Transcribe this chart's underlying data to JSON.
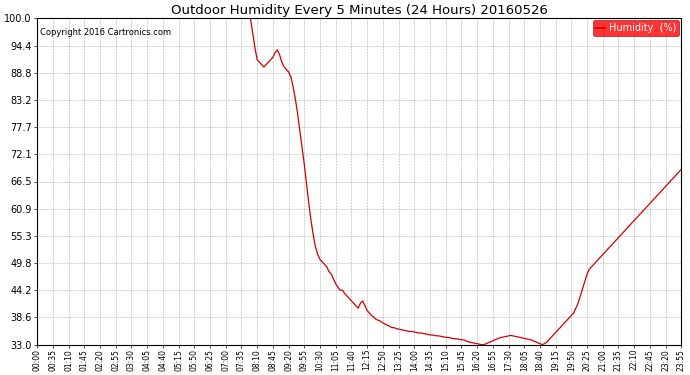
{
  "title": "Outdoor Humidity Every 5 Minutes (24 Hours) 20160526",
  "copyright_text": "Copyright 2016 Cartronics.com",
  "legend_label": "Humidity  (%)",
  "legend_bg": "#FF0000",
  "legend_fg": "#FFFFFF",
  "line_color": "#CC0000",
  "bg_color": "#FFFFFF",
  "plot_bg_color": "#FFFFFF",
  "grid_color": "#999999",
  "ylim": [
    33.0,
    100.0
  ],
  "yticks": [
    33.0,
    38.6,
    44.2,
    49.8,
    55.3,
    60.9,
    66.5,
    72.1,
    77.7,
    83.2,
    88.8,
    94.4,
    100.0
  ],
  "x_label_every_n": 7,
  "humidity_values": [
    100.0,
    100.0,
    100.0,
    100.0,
    100.0,
    100.0,
    100.0,
    100.0,
    100.0,
    100.0,
    100.0,
    100.0,
    100.0,
    100.0,
    100.0,
    100.0,
    100.0,
    100.0,
    100.0,
    100.0,
    100.0,
    100.0,
    100.0,
    100.0,
    100.0,
    100.0,
    100.0,
    100.0,
    100.0,
    100.0,
    100.0,
    100.0,
    100.0,
    100.0,
    100.0,
    100.0,
    100.0,
    100.0,
    100.0,
    100.0,
    100.0,
    100.0,
    100.0,
    100.0,
    100.0,
    100.0,
    100.0,
    100.0,
    100.0,
    100.0,
    100.0,
    100.0,
    100.0,
    100.0,
    100.0,
    100.0,
    100.0,
    100.0,
    100.0,
    100.0,
    100.0,
    100.0,
    100.0,
    100.0,
    100.0,
    100.0,
    100.0,
    100.0,
    100.0,
    100.0,
    100.0,
    100.0,
    100.0,
    100.0,
    100.0,
    100.0,
    100.0,
    100.0,
    100.0,
    100.0,
    100.0,
    100.0,
    100.0,
    100.0,
    100.0,
    100.0,
    100.0,
    100.0,
    100.0,
    100.0,
    100.0,
    100.0,
    100.0,
    100.0,
    100.0,
    100.0,
    97.0,
    94.0,
    91.5,
    91.0,
    90.5,
    90.0,
    90.5,
    91.0,
    91.5,
    92.0,
    93.0,
    93.5,
    92.5,
    91.0,
    90.0,
    89.5,
    89.0,
    88.0,
    86.0,
    83.5,
    80.5,
    77.0,
    73.5,
    70.0,
    66.0,
    62.0,
    58.5,
    55.5,
    53.0,
    51.5,
    50.5,
    50.0,
    49.5,
    49.0,
    48.0,
    47.5,
    46.5,
    45.5,
    44.8,
    44.2,
    44.2,
    43.5,
    43.0,
    42.5,
    42.0,
    41.5,
    41.0,
    40.5,
    41.5,
    42.0,
    41.0,
    40.0,
    39.5,
    39.0,
    38.6,
    38.2,
    38.0,
    37.8,
    37.5,
    37.2,
    37.0,
    36.8,
    36.5,
    36.5,
    36.3,
    36.2,
    36.1,
    36.0,
    35.9,
    35.8,
    35.7,
    35.7,
    35.6,
    35.5,
    35.4,
    35.4,
    35.3,
    35.2,
    35.1,
    35.0,
    35.0,
    34.9,
    34.8,
    34.8,
    34.7,
    34.6,
    34.5,
    34.5,
    34.4,
    34.3,
    34.2,
    34.2,
    34.1,
    34.0,
    34.0,
    33.8,
    33.6,
    33.5,
    33.4,
    33.3,
    33.2,
    33.1,
    33.0,
    33.0,
    33.2,
    33.4,
    33.6,
    33.8,
    34.0,
    34.2,
    34.4,
    34.5,
    34.6,
    34.7,
    34.8,
    34.9,
    34.8,
    34.7,
    34.6,
    34.5,
    34.4,
    34.3,
    34.2,
    34.1,
    34.0,
    33.8,
    33.6,
    33.4,
    33.2,
    33.0,
    33.2,
    33.5,
    34.0,
    34.5,
    35.0,
    35.5,
    36.0,
    36.5,
    37.0,
    37.5,
    38.0,
    38.5,
    39.0,
    39.5,
    40.5,
    41.5,
    43.0,
    44.5,
    46.0,
    47.5,
    48.5,
    49.0,
    49.5,
    50.0,
    50.5,
    51.0,
    51.5,
    52.0,
    52.5,
    53.0,
    53.5,
    54.0,
    54.5,
    55.0,
    55.5,
    56.0,
    56.5,
    57.0,
    57.5,
    58.0,
    58.5,
    59.0,
    59.5,
    60.0,
    60.5,
    61.0,
    61.5,
    62.0,
    62.5,
    63.0,
    63.5,
    64.0,
    64.5,
    65.0,
    65.5,
    66.0,
    66.5,
    67.0,
    67.5,
    68.0,
    68.5,
    69.0
  ]
}
